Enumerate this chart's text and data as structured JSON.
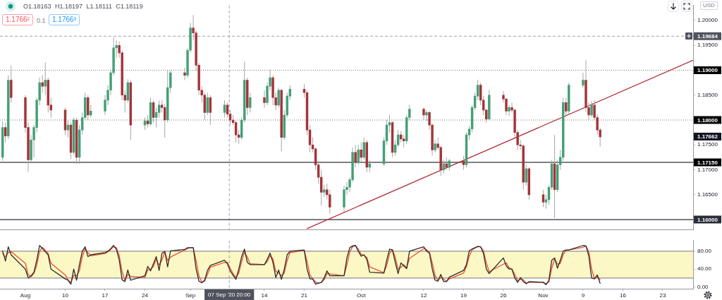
{
  "chart_data": [
    {
      "type": "candlestick",
      "x": [
        "2020-07-30T00:00",
        "2020-07-30T12:00",
        "2020-07-31T00:00",
        "2020-07-31T12:00",
        "2020-08-03T00:00",
        "2020-08-03T12:00",
        "2020-08-04T00:00",
        "2020-08-04T12:00",
        "2020-08-05T00:00",
        "2020-08-05T12:00",
        "2020-08-06T00:00",
        "2020-08-06T12:00",
        "2020-08-07T00:00",
        "2020-08-07T12:00",
        "2020-08-10T00:00",
        "2020-08-10T12:00",
        "2020-08-11T00:00",
        "2020-08-11T12:00",
        "2020-08-12T00:00",
        "2020-08-12T12:00",
        "2020-08-13T00:00",
        "2020-08-13T12:00",
        "2020-08-14T00:00",
        "2020-08-14T12:00",
        "2020-08-17T00:00",
        "2020-08-17T12:00",
        "2020-08-18T00:00",
        "2020-08-18T12:00",
        "2020-08-19T00:00",
        "2020-08-19T12:00",
        "2020-08-20T00:00",
        "2020-08-20T12:00",
        "2020-08-21T00:00",
        "2020-08-21T12:00",
        "2020-08-24T00:00",
        "2020-08-24T12:00",
        "2020-08-25T00:00",
        "2020-08-25T12:00",
        "2020-08-26T00:00",
        "2020-08-26T12:00",
        "2020-08-27T00:00",
        "2020-08-27T12:00",
        "2020-08-28T00:00",
        "2020-08-28T12:00",
        "2020-08-31T00:00",
        "2020-08-31T12:00",
        "2020-09-01T00:00",
        "2020-09-01T12:00",
        "2020-09-02T00:00",
        "2020-09-02T12:00",
        "2020-09-03T00:00",
        "2020-09-03T12:00",
        "2020-09-04T00:00",
        "2020-09-04T12:00",
        "2020-09-07T00:00",
        "2020-09-07T12:00",
        "2020-09-08T00:00",
        "2020-09-08T12:00",
        "2020-09-09T00:00",
        "2020-09-09T12:00",
        "2020-09-10T00:00",
        "2020-09-10T12:00",
        "2020-09-11T00:00",
        "2020-09-11T12:00",
        "2020-09-14T00:00",
        "2020-09-14T12:00",
        "2020-09-15T00:00",
        "2020-09-15T12:00",
        "2020-09-16T00:00",
        "2020-09-16T12:00",
        "2020-09-17T00:00",
        "2020-09-17T12:00",
        "2020-09-18T00:00",
        "2020-09-18T12:00",
        "2020-09-21T00:00",
        "2020-09-21T12:00",
        "2020-09-22T00:00",
        "2020-09-22T12:00",
        "2020-09-23T00:00",
        "2020-09-23T12:00",
        "2020-09-24T00:00",
        "2020-09-24T12:00",
        "2020-09-25T00:00",
        "2020-09-25T12:00",
        "2020-09-28T00:00",
        "2020-09-28T12:00",
        "2020-09-29T00:00",
        "2020-09-29T12:00",
        "2020-09-30T00:00",
        "2020-09-30T12:00",
        "2020-10-01T00:00",
        "2020-10-01T12:00",
        "2020-10-02T00:00",
        "2020-10-02T12:00",
        "2020-10-05T00:00",
        "2020-10-05T12:00",
        "2020-10-06T00:00",
        "2020-10-06T12:00",
        "2020-10-07T00:00",
        "2020-10-07T12:00",
        "2020-10-08T00:00",
        "2020-10-08T12:00",
        "2020-10-09T00:00",
        "2020-10-09T12:00",
        "2020-10-12T00:00",
        "2020-10-12T12:00",
        "2020-10-13T00:00",
        "2020-10-13T12:00",
        "2020-10-14T00:00",
        "2020-10-14T12:00",
        "2020-10-15T00:00",
        "2020-10-15T12:00",
        "2020-10-16T00:00",
        "2020-10-16T12:00",
        "2020-10-19T00:00",
        "2020-10-19T12:00",
        "2020-10-20T00:00",
        "2020-10-20T12:00",
        "2020-10-21T00:00",
        "2020-10-21T12:00",
        "2020-10-22T00:00",
        "2020-10-22T12:00",
        "2020-10-23T00:00",
        "2020-10-23T12:00",
        "2020-10-26T00:00",
        "2020-10-26T12:00",
        "2020-10-27T00:00",
        "2020-10-27T12:00",
        "2020-10-28T00:00",
        "2020-10-28T12:00",
        "2020-10-29T00:00",
        "2020-10-29T12:00",
        "2020-10-30T00:00",
        "2020-10-30T12:00",
        "2020-11-02T00:00",
        "2020-11-02T12:00",
        "2020-11-03T00:00",
        "2020-11-03T12:00",
        "2020-11-04T00:00",
        "2020-11-04T12:00",
        "2020-11-05T00:00",
        "2020-11-05T12:00",
        "2020-11-06T00:00",
        "2020-11-06T12:00",
        "2020-11-09T00:00",
        "2020-11-09T12:00",
        "2020-11-10T00:00",
        "2020-11-10T12:00",
        "2020-11-11T00:00",
        "2020-11-11T12:00",
        "2020-11-12T00:00"
      ],
      "ohlc": [
        [
          1.1725,
          1.1797,
          1.1718,
          1.1785
        ],
        [
          1.1785,
          1.1795,
          1.1755,
          1.1768
        ],
        [
          1.1768,
          1.189,
          1.1762,
          1.188
        ],
        [
          1.188,
          1.1909,
          1.1835,
          1.1845
        ],
        [
          1.1845,
          1.185,
          1.1775,
          1.1785
        ],
        [
          1.1785,
          1.1795,
          1.1696,
          1.172
        ],
        [
          1.172,
          1.177,
          1.1715,
          1.176
        ],
        [
          1.176,
          1.179,
          1.1725,
          1.1785
        ],
        [
          1.1785,
          1.1845,
          1.1775,
          1.184
        ],
        [
          1.184,
          1.1885,
          1.183,
          1.1875
        ],
        [
          1.1875,
          1.189,
          1.1855,
          1.1868
        ],
        [
          1.1868,
          1.1916,
          1.185,
          1.188
        ],
        [
          1.188,
          1.1885,
          1.1815,
          1.183
        ],
        [
          1.183,
          1.1845,
          1.1805,
          1.182
        ],
        [
          1.182,
          1.1825,
          1.177,
          1.178
        ],
        [
          1.178,
          1.18,
          1.1765,
          1.179
        ],
        [
          1.179,
          1.1795,
          1.1722,
          1.1735
        ],
        [
          1.1735,
          1.1805,
          1.173,
          1.18
        ],
        [
          1.18,
          1.1805,
          1.1712,
          1.1725
        ],
        [
          1.1725,
          1.179,
          1.1712,
          1.178
        ],
        [
          1.178,
          1.1815,
          1.177,
          1.1805
        ],
        [
          1.1805,
          1.1855,
          1.18,
          1.1845
        ],
        [
          1.1845,
          1.185,
          1.18,
          1.181
        ],
        [
          1.181,
          1.183,
          1.1805,
          1.1818
        ],
        [
          1.1818,
          1.185,
          1.181,
          1.184
        ],
        [
          1.184,
          1.187,
          1.183,
          1.186
        ],
        [
          1.186,
          1.19,
          1.185,
          1.1895
        ],
        [
          1.1895,
          1.1966,
          1.189,
          1.1945
        ],
        [
          1.1945,
          1.196,
          1.1925,
          1.195
        ],
        [
          1.195,
          1.1958,
          1.1925,
          1.1935
        ],
        [
          1.1935,
          1.194,
          1.184,
          1.185
        ],
        [
          1.185,
          1.186,
          1.1815,
          1.184
        ],
        [
          1.184,
          1.1882,
          1.1835,
          1.1875
        ],
        [
          1.1875,
          1.188,
          1.176,
          1.179
        ],
        [
          1.179,
          1.1805,
          1.178,
          1.1798
        ],
        [
          1.1798,
          1.181,
          1.1785,
          1.1792
        ],
        [
          1.1792,
          1.1845,
          1.1788,
          1.1835
        ],
        [
          1.1835,
          1.184,
          1.1795,
          1.1805
        ],
        [
          1.1805,
          1.1825,
          1.1785,
          1.1815
        ],
        [
          1.1815,
          1.184,
          1.1805,
          1.183
        ],
        [
          1.183,
          1.184,
          1.1815,
          1.1825
        ],
        [
          1.1825,
          1.1832,
          1.1765,
          1.18
        ],
        [
          1.18,
          1.19,
          1.1795,
          1.1865
        ],
        [
          1.1865,
          1.19,
          1.1855,
          1.1895
        ],
        [
          1.1895,
          1.1905,
          1.188,
          1.189
        ],
        [
          1.189,
          1.1945,
          1.1885,
          1.194
        ],
        [
          1.194,
          1.1995,
          1.1935,
          1.1985
        ],
        [
          1.1985,
          1.2011,
          1.196,
          1.1975
        ],
        [
          1.1975,
          1.198,
          1.19,
          1.191
        ],
        [
          1.191,
          1.1915,
          1.185,
          1.186
        ],
        [
          1.186,
          1.1868,
          1.1835,
          1.185
        ],
        [
          1.185,
          1.1855,
          1.18,
          1.1815
        ],
        [
          1.1815,
          1.1855,
          1.181,
          1.1845
        ],
        [
          1.1845,
          1.185,
          1.179,
          1.1815
        ],
        [
          1.1815,
          1.184,
          1.1805,
          1.183
        ],
        [
          1.183,
          1.1835,
          1.1805,
          1.1812
        ],
        [
          1.1812,
          1.182,
          1.179,
          1.18
        ],
        [
          1.18,
          1.181,
          1.179,
          1.1795
        ],
        [
          1.1795,
          1.1798,
          1.1755,
          1.177
        ],
        [
          1.177,
          1.178,
          1.1752,
          1.1765
        ],
        [
          1.1765,
          1.1805,
          1.176,
          1.18
        ],
        [
          1.18,
          1.1917,
          1.1795,
          1.188
        ],
        [
          1.188,
          1.1885,
          1.181,
          1.1825
        ],
        [
          1.1825,
          1.1855,
          1.1815,
          1.1845
        ],
        [
          1.1845,
          1.186,
          1.1825,
          1.1835
        ],
        [
          1.1835,
          1.1875,
          1.183,
          1.1868
        ],
        [
          1.1868,
          1.19,
          1.186,
          1.1885
        ],
        [
          1.1885,
          1.189,
          1.183,
          1.1845
        ],
        [
          1.1845,
          1.1855,
          1.182,
          1.183
        ],
        [
          1.183,
          1.1865,
          1.1825,
          1.186
        ],
        [
          1.186,
          1.1862,
          1.1737,
          1.1765
        ],
        [
          1.1765,
          1.182,
          1.176,
          1.181
        ],
        [
          1.181,
          1.1855,
          1.1805,
          1.1848
        ],
        [
          1.1848,
          1.187,
          1.184,
          1.1862
        ],
        [
          1.1862,
          1.1872,
          1.1845,
          1.1855
        ],
        [
          1.1855,
          1.186,
          1.177,
          1.178
        ],
        [
          1.178,
          1.179,
          1.1735,
          1.175
        ],
        [
          1.175,
          1.1765,
          1.1735,
          1.1742
        ],
        [
          1.1742,
          1.1745,
          1.17,
          1.171
        ],
        [
          1.171,
          1.1718,
          1.1672,
          1.1685
        ],
        [
          1.1685,
          1.17,
          1.1628,
          1.1655
        ],
        [
          1.1655,
          1.167,
          1.1645,
          1.166
        ],
        [
          1.166,
          1.1672,
          1.164,
          1.165
        ],
        [
          1.165,
          1.166,
          1.1612,
          1.1625
        ],
        [
          1.1625,
          1.1668,
          1.1615,
          1.166
        ],
        [
          1.166,
          1.1675,
          1.165,
          1.1665
        ],
        [
          1.1665,
          1.1685,
          1.1655,
          1.168
        ],
        [
          1.168,
          1.1745,
          1.1675,
          1.1735
        ],
        [
          1.1735,
          1.175,
          1.1705,
          1.1715
        ],
        [
          1.1715,
          1.175,
          1.171,
          1.174
        ],
        [
          1.174,
          1.1755,
          1.1715,
          1.1725
        ],
        [
          1.1725,
          1.1765,
          1.172,
          1.1755
        ],
        [
          1.1755,
          1.176,
          1.1695,
          1.1705
        ],
        [
          1.1705,
          1.172,
          1.1695,
          1.1712
        ],
        [
          1.1712,
          1.1765,
          1.1708,
          1.1758
        ],
        [
          1.1758,
          1.18,
          1.175,
          1.179
        ],
        [
          1.179,
          1.181,
          1.1775,
          1.1795
        ],
        [
          1.1795,
          1.1798,
          1.1725,
          1.1735
        ],
        [
          1.1735,
          1.176,
          1.1728,
          1.175
        ],
        [
          1.175,
          1.178,
          1.1745,
          1.177
        ],
        [
          1.177,
          1.1778,
          1.1755,
          1.1762
        ],
        [
          1.1762,
          1.177,
          1.1745,
          1.1758
        ],
        [
          1.1758,
          1.181,
          1.1752,
          1.1805
        ],
        [
          1.1805,
          1.1831,
          1.18,
          1.1822
        ],
        [
          1.1822,
          1.1825,
          1.18,
          1.181
        ],
        [
          1.181,
          1.182,
          1.1798,
          1.1815
        ],
        [
          1.1815,
          1.1818,
          1.178,
          1.179
        ],
        [
          1.179,
          1.1792,
          1.1728,
          1.174
        ],
        [
          1.174,
          1.176,
          1.1735,
          1.1752
        ],
        [
          1.1752,
          1.1765,
          1.174,
          1.1745
        ],
        [
          1.1745,
          1.1748,
          1.1688,
          1.17
        ],
        [
          1.17,
          1.172,
          1.1692,
          1.1712
        ],
        [
          1.1712,
          1.1725,
          1.17,
          1.1705
        ],
        [
          1.1705,
          1.1722,
          1.1698,
          1.1718
        ],
        [
          1.1718,
          1.1728,
          1.17,
          1.171
        ],
        [
          1.171,
          1.1775,
          1.1705,
          1.177
        ],
        [
          1.177,
          1.1788,
          1.176,
          1.1782
        ],
        [
          1.1782,
          1.183,
          1.1775,
          1.1825
        ],
        [
          1.1825,
          1.1855,
          1.182,
          1.1848
        ],
        [
          1.1848,
          1.1881,
          1.184,
          1.187
        ],
        [
          1.187,
          1.1875,
          1.183,
          1.184
        ],
        [
          1.184,
          1.1848,
          1.181,
          1.182
        ],
        [
          1.182,
          1.1822,
          1.1795,
          1.1802
        ],
        [
          1.1802,
          1.1861,
          1.18,
          1.185
        ],
        [
          1.185,
          1.1858,
          1.1835,
          1.1842
        ],
        [
          1.1842,
          1.1845,
          1.181,
          1.1818
        ],
        [
          1.1818,
          1.183,
          1.1808,
          1.1825
        ],
        [
          1.1825,
          1.1835,
          1.1815,
          1.182
        ],
        [
          1.182,
          1.1822,
          1.1765,
          1.1775
        ],
        [
          1.1775,
          1.178,
          1.174,
          1.175
        ],
        [
          1.175,
          1.176,
          1.174,
          1.1748
        ],
        [
          1.1748,
          1.175,
          1.166,
          1.1675
        ],
        [
          1.1675,
          1.171,
          1.1668,
          1.1702
        ],
        [
          1.1702,
          1.1705,
          1.164,
          1.165
        ],
        [
          1.165,
          1.166,
          1.1625,
          1.1635
        ],
        [
          1.1635,
          1.165,
          1.1622,
          1.164
        ],
        [
          1.164,
          1.167,
          1.163,
          1.1665
        ],
        [
          1.1665,
          1.172,
          1.166,
          1.1712
        ],
        [
          1.1712,
          1.177,
          1.1603,
          1.166
        ],
        [
          1.166,
          1.172,
          1.1655,
          1.171
        ],
        [
          1.171,
          1.174,
          1.17,
          1.1725
        ],
        [
          1.1725,
          1.1845,
          1.1718,
          1.1835
        ],
        [
          1.1835,
          1.1845,
          1.181,
          1.1818
        ],
        [
          1.1818,
          1.1875,
          1.1812,
          1.187
        ],
        [
          1.187,
          1.1895,
          1.1865,
          1.188
        ],
        [
          1.188,
          1.192,
          1.1815,
          1.1825
        ],
        [
          1.1825,
          1.1835,
          1.18,
          1.181
        ],
        [
          1.181,
          1.1838,
          1.1805,
          1.183
        ],
        [
          1.183,
          1.184,
          1.18,
          1.1805
        ],
        [
          1.1805,
          1.1812,
          1.177,
          1.178
        ],
        [
          1.178,
          1.1785,
          1.1747,
          1.17662
        ]
      ],
      "colors": [
        "#43a077",
        "#a3343a",
        "#43a077",
        "#a3343a",
        "#a3343a",
        "#a3343a",
        "#43a077",
        "#43a077",
        "#43a077",
        "#43a077",
        "#a3343a",
        "#43a077",
        "#a3343a",
        "#a3343a",
        "#a3343a",
        "#43a077",
        "#a3343a",
        "#43a077",
        "#a3343a",
        "#43a077",
        "#43a077",
        "#43a077",
        "#a3343a",
        "#43a077",
        "#43a077",
        "#43a077",
        "#43a077",
        "#43a077",
        "#43a077",
        "#a3343a",
        "#a3343a",
        "#a3343a",
        "#43a077",
        "#a3343a",
        "#43a077",
        "#a3343a",
        "#43a077",
        "#a3343a",
        "#43a077",
        "#43a077",
        "#a3343a",
        "#a3343a",
        "#43a077",
        "#43a077",
        "#a3343a",
        "#43a077",
        "#43a077",
        "#a3343a",
        "#a3343a",
        "#a3343a",
        "#a3343a",
        "#a3343a",
        "#43a077",
        "#a3343a",
        "#43a077",
        "#a3343a",
        "#a3343a",
        "#a3343a",
        "#a3343a",
        "#a3343a",
        "#43a077",
        "#43a077",
        "#a3343a",
        "#43a077",
        "#a3343a",
        "#43a077",
        "#43a077",
        "#a3343a",
        "#a3343a",
        "#43a077",
        "#a3343a",
        "#43a077",
        "#43a077",
        "#43a077",
        "#a3343a",
        "#a3343a",
        "#a3343a",
        "#a3343a",
        "#a3343a",
        "#a3343a",
        "#a3343a",
        "#43a077",
        "#a3343a",
        "#a3343a",
        "#43a077",
        "#43a077",
        "#43a077",
        "#43a077",
        "#a3343a",
        "#43a077",
        "#a3343a",
        "#43a077",
        "#a3343a",
        "#43a077",
        "#43a077",
        "#43a077",
        "#43a077",
        "#a3343a",
        "#43a077",
        "#43a077",
        "#a3343a",
        "#a3343a",
        "#43a077",
        "#43a077",
        "#a3343a",
        "#43a077",
        "#a3343a",
        "#a3343a",
        "#43a077",
        "#a3343a",
        "#a3343a",
        "#43a077",
        "#a3343a",
        "#43a077",
        "#a3343a",
        "#43a077",
        "#43a077",
        "#43a077",
        "#43a077",
        "#43a077",
        "#a3343a",
        "#a3343a",
        "#a3343a",
        "#43a077",
        "#a3343a",
        "#a3343a",
        "#43a077",
        "#a3343a",
        "#a3343a",
        "#a3343a",
        "#a3343a",
        "#a3343a",
        "#43a077",
        "#a3343a",
        "#a3343a",
        "#43a077",
        "#43a077",
        "#43a077",
        "#a3343a",
        "#43a077",
        "#43a077",
        "#43a077",
        "#a3343a",
        "#43a077",
        "#43a077",
        "#a3343a",
        "#a3343a",
        "#43a077",
        "#a3343a",
        "#a3343a",
        "#a3343a"
      ],
      "series": [
        {
          "type": "line",
          "x": [
            "2020-09-21T12:00",
            "2020-11-28T08:00"
          ],
          "values": [
            1.1582,
            1.192
          ],
          "color": "#b22833"
        }
      ],
      "xlim": [
        "2020-07-29T13:00",
        "2020-11-28T08:00"
      ],
      "ylim": [
        1.158,
        1.203
      ],
      "yticks": [
        {
          "value": 1.2,
          "label": "1.20000"
        },
        {
          "value": 1.195,
          "label": "1.19500"
        },
        {
          "value": 1.185,
          "label": "1.18500"
        },
        {
          "value": 1.175,
          "label": "1.17500"
        },
        {
          "value": 1.17,
          "label": "1.17000"
        },
        {
          "value": 1.165,
          "label": "1.16500"
        }
      ],
      "tick_labels": "y",
      "ref_lines": [
        {
          "axis": "y",
          "value": 1.19684,
          "label": "1.19684",
          "line_style": "dashed",
          "color": "#50535e"
        },
        {
          "axis": "y",
          "value": 1.19,
          "label": "1.19000",
          "line_style": "dotted",
          "color": "#000000"
        },
        {
          "axis": "y",
          "value": 1.18,
          "label": "1.18000",
          "line_style": "dotted",
          "color": "#000000"
        },
        {
          "axis": "y",
          "value": 1.1715,
          "label": "1.17150",
          "color": "#000000"
        },
        {
          "axis": "y",
          "value": 1.16,
          "label": "1.16000",
          "color": "#2a2e39"
        },
        {
          "axis": "x",
          "value": "2020-09-07T20:00",
          "line_style": "dashed",
          "color": "#50535e"
        }
      ],
      "annotations": [
        "O1.18163 H1.18197 L1.18111 C1.18119",
        "1.1766²",
        "0.1",
        "1.1766³",
        "USD",
        "1.17662"
      ]
    },
    {
      "type": "line",
      "x": [
        "2020-07-30T00:00",
        "2020-07-30T12:00",
        "2020-07-31T00:00",
        "2020-07-31T12:00",
        "2020-08-03T00:00",
        "2020-08-03T12:00",
        "2020-08-04T00:00",
        "2020-08-04T12:00",
        "2020-08-05T00:00",
        "2020-08-05T12:00",
        "2020-08-06T00:00",
        "2020-08-06T12:00",
        "2020-08-07T00:00",
        "2020-08-07T12:00",
        "2020-08-10T00:00",
        "2020-08-10T12:00",
        "2020-08-11T00:00",
        "2020-08-11T12:00",
        "2020-08-12T00:00",
        "2020-08-12T12:00",
        "2020-08-13T00:00",
        "2020-08-13T12:00",
        "2020-08-14T00:00",
        "2020-08-14T12:00",
        "2020-08-17T00:00",
        "2020-08-17T12:00",
        "2020-08-18T00:00",
        "2020-08-18T12:00",
        "2020-08-19T00:00",
        "2020-08-19T12:00",
        "2020-08-20T00:00",
        "2020-08-20T12:00",
        "2020-08-21T00:00",
        "2020-08-21T12:00",
        "2020-08-24T00:00",
        "2020-08-24T12:00",
        "2020-08-25T00:00",
        "2020-08-25T12:00",
        "2020-08-26T00:00",
        "2020-08-26T12:00",
        "2020-08-27T00:00",
        "2020-08-27T12:00",
        "2020-08-28T00:00",
        "2020-08-28T12:00",
        "2020-08-31T00:00",
        "2020-08-31T12:00",
        "2020-09-01T00:00",
        "2020-09-01T12:00",
        "2020-09-02T00:00",
        "2020-09-02T12:00",
        "2020-09-03T00:00",
        "2020-09-03T12:00",
        "2020-09-04T00:00",
        "2020-09-04T12:00",
        "2020-09-07T00:00",
        "2020-09-07T12:00",
        "2020-09-08T00:00",
        "2020-09-08T12:00",
        "2020-09-09T00:00",
        "2020-09-09T12:00",
        "2020-09-10T00:00",
        "2020-09-10T12:00",
        "2020-09-11T00:00",
        "2020-09-11T12:00",
        "2020-09-14T00:00",
        "2020-09-14T12:00",
        "2020-09-15T00:00",
        "2020-09-15T12:00",
        "2020-09-16T00:00",
        "2020-09-16T12:00",
        "2020-09-17T00:00",
        "2020-09-17T12:00",
        "2020-09-18T00:00",
        "2020-09-18T12:00",
        "2020-09-21T00:00",
        "2020-09-21T12:00",
        "2020-09-22T00:00",
        "2020-09-22T12:00",
        "2020-09-23T00:00",
        "2020-09-23T12:00",
        "2020-09-24T00:00",
        "2020-09-24T12:00",
        "2020-09-25T00:00",
        "2020-09-25T12:00",
        "2020-09-28T00:00",
        "2020-09-28T12:00",
        "2020-09-29T00:00",
        "2020-09-29T12:00",
        "2020-09-30T00:00",
        "2020-09-30T12:00",
        "2020-10-01T00:00",
        "2020-10-01T12:00",
        "2020-10-02T00:00",
        "2020-10-02T12:00",
        "2020-10-05T00:00",
        "2020-10-05T12:00",
        "2020-10-06T00:00",
        "2020-10-06T12:00",
        "2020-10-07T00:00",
        "2020-10-07T12:00",
        "2020-10-08T00:00",
        "2020-10-08T12:00",
        "2020-10-09T00:00",
        "2020-10-09T12:00",
        "2020-10-12T00:00",
        "2020-10-12T12:00",
        "2020-10-13T00:00",
        "2020-10-13T12:00",
        "2020-10-14T00:00",
        "2020-10-14T12:00",
        "2020-10-15T00:00",
        "2020-10-15T12:00",
        "2020-10-16T00:00",
        "2020-10-16T12:00",
        "2020-10-19T00:00",
        "2020-10-19T12:00",
        "2020-10-20T00:00",
        "2020-10-20T12:00",
        "2020-10-21T00:00",
        "2020-10-21T12:00",
        "2020-10-22T00:00",
        "2020-10-22T12:00",
        "2020-10-23T00:00",
        "2020-10-23T12:00",
        "2020-10-26T00:00",
        "2020-10-26T12:00",
        "2020-10-27T00:00",
        "2020-10-27T12:00",
        "2020-10-28T00:00",
        "2020-10-28T12:00",
        "2020-10-29T00:00",
        "2020-10-29T12:00",
        "2020-10-30T00:00",
        "2020-10-30T12:00",
        "2020-11-02T00:00",
        "2020-11-02T12:00",
        "2020-11-03T00:00",
        "2020-11-03T12:00",
        "2020-11-04T00:00",
        "2020-11-04T12:00",
        "2020-11-05T00:00",
        "2020-11-05T12:00",
        "2020-11-06T00:00",
        "2020-11-06T12:00",
        "2020-11-09T00:00",
        "2020-11-09T12:00",
        "2020-11-10T00:00",
        "2020-11-10T12:00",
        "2020-11-11T00:00",
        "2020-11-11T12:00",
        "2020-11-12T00:00"
      ],
      "series": [
        {
          "color": "#2c2c2c",
          "values": [
            81,
            58,
            90,
            72,
            40,
            20,
            25,
            33,
            60,
            93,
            86,
            79,
            72,
            40,
            18,
            15,
            6,
            40,
            15,
            50,
            80,
            90,
            68,
            72,
            77,
            80,
            86,
            93,
            84,
            60,
            16,
            12,
            38,
            15,
            25,
            46,
            36,
            52,
            68,
            37,
            75,
            80,
            45,
            81,
            84,
            88,
            88,
            88,
            40,
            13,
            9,
            15,
            37,
            48,
            60,
            52,
            36,
            26,
            17,
            40,
            68,
            85,
            55,
            50,
            50,
            62,
            76,
            55,
            21,
            38,
            17,
            40,
            72,
            80,
            83,
            40,
            18,
            18,
            6,
            9,
            10,
            20,
            36,
            25,
            25,
            65,
            88,
            92,
            93,
            80,
            69,
            72,
            62,
            33,
            31,
            60,
            85,
            83,
            55,
            30,
            54,
            47,
            41,
            80,
            90,
            80,
            76,
            40,
            15,
            13,
            28,
            12,
            12,
            22,
            37,
            50,
            81,
            85,
            88,
            91,
            90,
            75,
            40,
            30,
            65,
            47,
            40,
            40,
            20,
            10,
            21,
            12,
            7,
            12,
            10,
            5,
            15,
            60,
            65,
            42,
            60,
            80,
            83,
            83,
            93,
            92,
            70,
            20,
            18,
            27,
            8
          ]
        },
        {
          "color": "#ee4b2b",
          "values": [
            75,
            67,
            77,
            79,
            53,
            28,
            23,
            30,
            49,
            80,
            89,
            82,
            75,
            53,
            27,
            16,
            10,
            26,
            25,
            36,
            68,
            86,
            77,
            70,
            75,
            79,
            84,
            90,
            88,
            70,
            34,
            14,
            28,
            24,
            21,
            38,
            40,
            46,
            62,
            49,
            60,
            78,
            59,
            67,
            83,
            86,
            88,
            88,
            59,
            24,
            11,
            13,
            28,
            44,
            55,
            55,
            42,
            30,
            21,
            31,
            57,
            78,
            67,
            52,
            50,
            57,
            70,
            63,
            35,
            31,
            25,
            31,
            59,
            77,
            82,
            57,
            27,
            18,
            11,
            8,
            10,
            16,
            30,
            29,
            25,
            49,
            79,
            90,
            93,
            85,
            73,
            71,
            66,
            45,
            32,
            48,
            75,
            84,
            66,
            40,
            44,
            50,
            43,
            64,
            86,
            84,
            78,
            54,
            25,
            14,
            22,
            18,
            12,
            18,
            31,
            45,
            69,
            83,
            87,
            90,
            90,
            81,
            54,
            34,
            51,
            54,
            43,
            40,
            28,
            14,
            17,
            16,
            9,
            10,
            11,
            7,
            11,
            42,
            63,
            51,
            53,
            72,
            82,
            83,
            89,
            92,
            79,
            40,
            19,
            23,
            16
          ]
        }
      ],
      "xlim": [
        "2020-07-29T13:00",
        "2020-11-28T08:00"
      ],
      "xticks": [
        {
          "value": "2020-08-03",
          "label": "Aug"
        },
        {
          "value": "2020-08-10",
          "label": "10"
        },
        {
          "value": "2020-08-17",
          "label": "17"
        },
        {
          "value": "2020-08-24",
          "label": "24"
        },
        {
          "value": "2020-09-01",
          "label": "Sep"
        },
        {
          "value": "2020-09-14",
          "label": "14"
        },
        {
          "value": "2020-09-21",
          "label": "21"
        },
        {
          "value": "2020-10-01",
          "label": "Oct"
        },
        {
          "value": "2020-10-12",
          "label": "12"
        },
        {
          "value": "2020-10-19",
          "label": "19"
        },
        {
          "value": "2020-10-26",
          "label": "26"
        },
        {
          "value": "2020-11-02",
          "label": "Nov"
        },
        {
          "value": "2020-11-09",
          "label": "9"
        },
        {
          "value": "2020-11-16",
          "label": "16"
        },
        {
          "value": "2020-11-23",
          "label": "23"
        }
      ],
      "ylim": [
        -4,
        104
      ],
      "yticks": [
        {
          "value": 80,
          "label": "80.00"
        },
        {
          "value": 40,
          "label": "40.00"
        },
        {
          "value": 0,
          "label": "0.00"
        }
      ],
      "bands": [
        {
          "axis": "y",
          "from": 20,
          "to": 80,
          "color": "#fcf8c6"
        }
      ],
      "ref_lines": [
        {
          "axis": "y",
          "value": 80,
          "color": "#8f8f8f"
        },
        {
          "axis": "y",
          "value": 20,
          "color": "#8f8f8f"
        },
        {
          "axis": "x",
          "value": "2020-09-07T20:00",
          "label": "07 Sep '20 20:00",
          "line_style": "dashed",
          "color": "#50535e"
        }
      ]
    }
  ]
}
